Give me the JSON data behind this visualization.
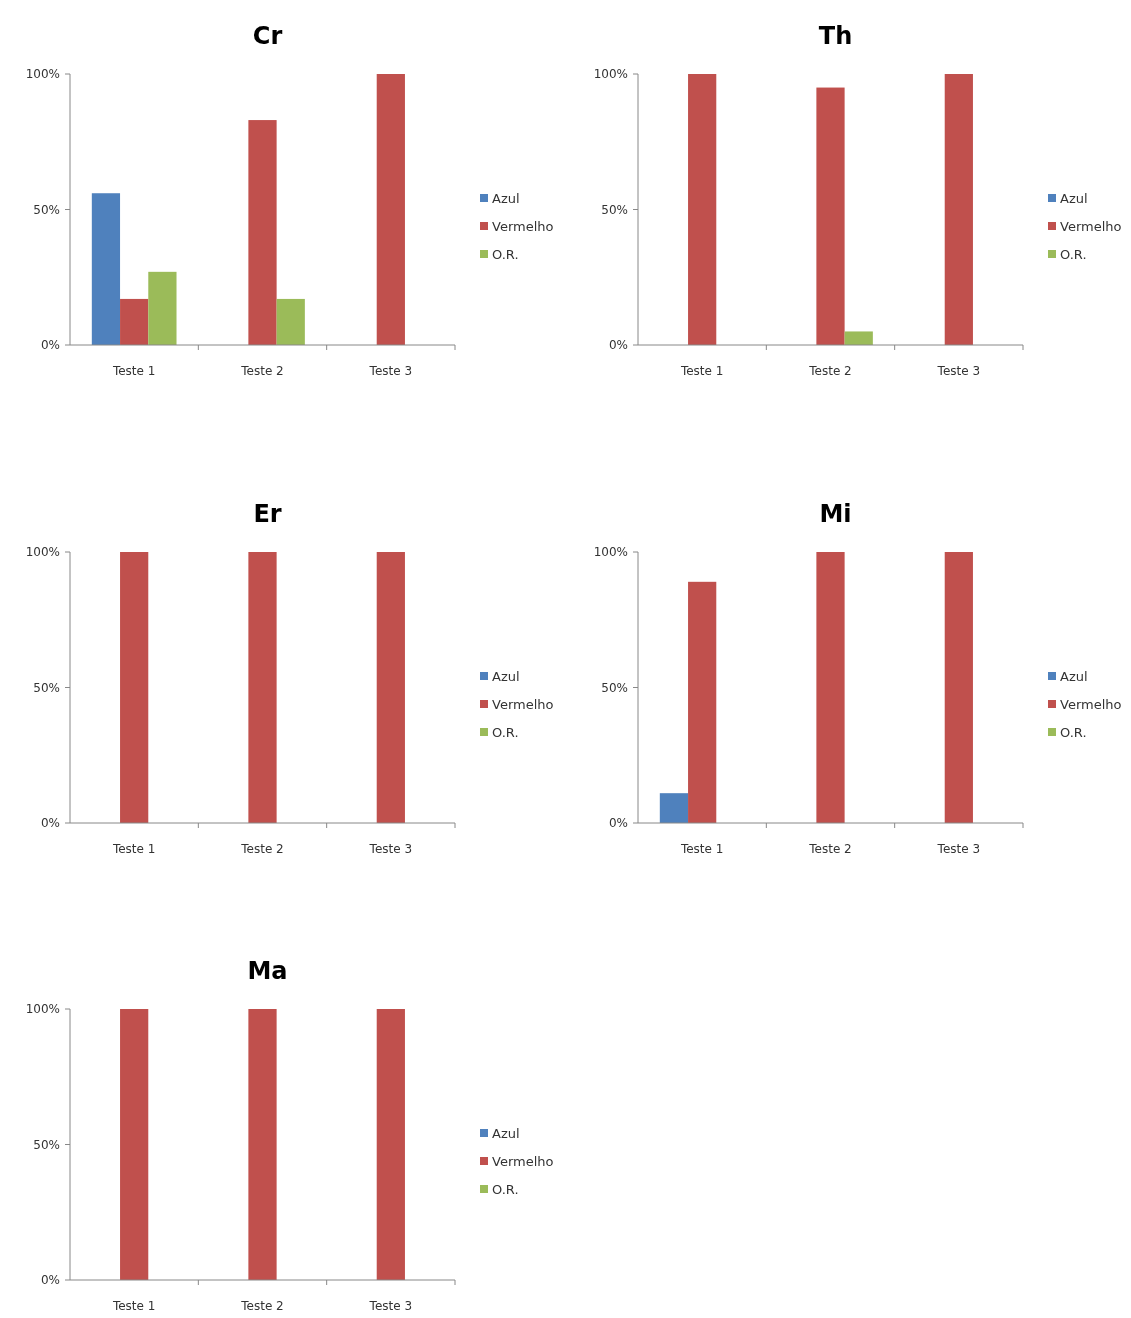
{
  "chart_data": [
    {
      "type": "bar",
      "title": "Cr",
      "categories": [
        "Teste 1",
        "Teste 2",
        "Teste 3"
      ],
      "series": [
        {
          "name": "Azul",
          "color": "#4f81bd",
          "values": [
            56,
            0,
            0
          ]
        },
        {
          "name": "Vermelho",
          "color": "#c0504d",
          "values": [
            17,
            83,
            100
          ]
        },
        {
          "name": "O.R.",
          "color": "#9bbb59",
          "values": [
            27,
            17,
            0
          ]
        }
      ],
      "ylim": [
        0,
        100
      ],
      "yticks": [
        {
          "value": 0,
          "label": "0%"
        },
        {
          "value": 50,
          "label": "50%"
        },
        {
          "value": 100,
          "label": "100%"
        }
      ],
      "grid": false,
      "legend": "right"
    },
    {
      "type": "bar",
      "title": "Th",
      "categories": [
        "Teste 1",
        "Teste 2",
        "Teste 3"
      ],
      "series": [
        {
          "name": "Azul",
          "color": "#4f81bd",
          "values": [
            0,
            0,
            0
          ]
        },
        {
          "name": "Vermelho",
          "color": "#c0504d",
          "values": [
            100,
            95,
            100
          ]
        },
        {
          "name": "O.R.",
          "color": "#9bbb59",
          "values": [
            0,
            5,
            0
          ]
        }
      ],
      "ylim": [
        0,
        100
      ],
      "yticks": [
        {
          "value": 0,
          "label": "0%"
        },
        {
          "value": 50,
          "label": "50%"
        },
        {
          "value": 100,
          "label": "100%"
        }
      ],
      "grid": false,
      "legend": "right"
    },
    {
      "type": "bar",
      "title": "Er",
      "categories": [
        "Teste 1",
        "Teste 2",
        "Teste 3"
      ],
      "series": [
        {
          "name": "Azul",
          "color": "#4f81bd",
          "values": [
            0,
            0,
            0
          ]
        },
        {
          "name": "Vermelho",
          "color": "#c0504d",
          "values": [
            100,
            100,
            100
          ]
        },
        {
          "name": "O.R.",
          "color": "#9bbb59",
          "values": [
            0,
            0,
            0
          ]
        }
      ],
      "ylim": [
        0,
        100
      ],
      "yticks": [
        {
          "value": 0,
          "label": "0%"
        },
        {
          "value": 50,
          "label": "50%"
        },
        {
          "value": 100,
          "label": "100%"
        }
      ],
      "grid": false,
      "legend": "right"
    },
    {
      "type": "bar",
      "title": "Mi",
      "categories": [
        "Teste 1",
        "Teste 2",
        "Teste 3"
      ],
      "series": [
        {
          "name": "Azul",
          "color": "#4f81bd",
          "values": [
            11,
            0,
            0
          ]
        },
        {
          "name": "Vermelho",
          "color": "#c0504d",
          "values": [
            89,
            100,
            100
          ]
        },
        {
          "name": "O.R.",
          "color": "#9bbb59",
          "values": [
            0,
            0,
            0
          ]
        }
      ],
      "ylim": [
        0,
        100
      ],
      "yticks": [
        {
          "value": 0,
          "label": "0%"
        },
        {
          "value": 50,
          "label": "50%"
        },
        {
          "value": 100,
          "label": "100%"
        }
      ],
      "grid": false,
      "legend": "right"
    },
    {
      "type": "bar",
      "title": "Ma",
      "categories": [
        "Teste 1",
        "Teste 2",
        "Teste 3"
      ],
      "series": [
        {
          "name": "Azul",
          "color": "#4f81bd",
          "values": [
            0,
            0,
            0
          ]
        },
        {
          "name": "Vermelho",
          "color": "#c0504d",
          "values": [
            100,
            100,
            100
          ]
        },
        {
          "name": "O.R.",
          "color": "#9bbb59",
          "values": [
            0,
            0,
            0
          ]
        }
      ],
      "ylim": [
        0,
        100
      ],
      "yticks": [
        {
          "value": 0,
          "label": "0%"
        },
        {
          "value": 50,
          "label": "50%"
        },
        {
          "value": 100,
          "label": "100%"
        }
      ],
      "grid": false,
      "legend": "right"
    }
  ]
}
